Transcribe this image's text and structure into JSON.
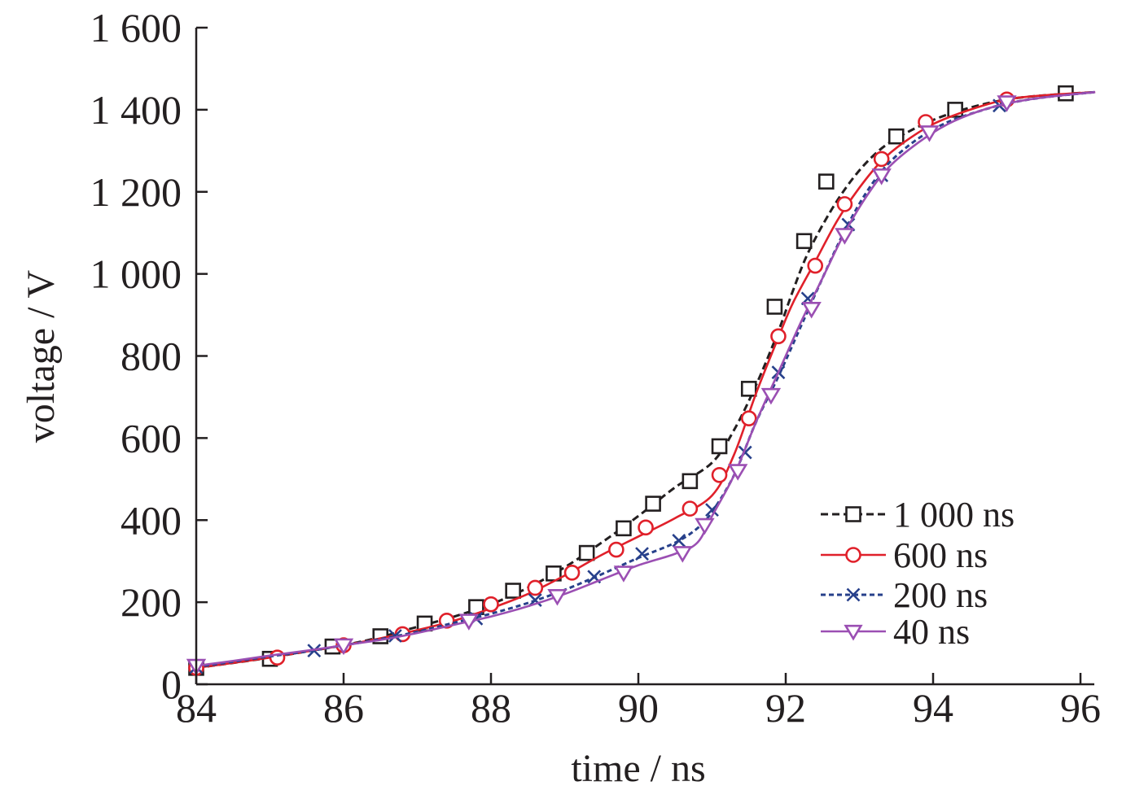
{
  "chart_data": {
    "type": "line",
    "title": "",
    "xlabel": "time / ns",
    "ylabel": "voltage / V",
    "xlim": [
      84,
      96.2
    ],
    "ylim": [
      0,
      1600
    ],
    "xticks": [
      84,
      86,
      88,
      90,
      92,
      94,
      96
    ],
    "xtick_labels": [
      "84",
      "86",
      "88",
      "90",
      "92",
      "94",
      "96"
    ],
    "yticks": [
      0,
      200,
      400,
      600,
      800,
      1000,
      1200,
      1400,
      1600
    ],
    "ytick_labels": [
      "0",
      "200",
      "400",
      "600",
      "800",
      "1 000",
      "1 200",
      "1 400",
      "1 600"
    ],
    "grid": false,
    "legend_position": "bottom-right",
    "series": [
      {
        "name": "1 000 ns",
        "color": "#231f20",
        "line": "dashed",
        "marker": "square",
        "x": [
          84.0,
          84.5,
          85.0,
          85.5,
          86.0,
          86.5,
          87.0,
          87.5,
          88.0,
          88.5,
          89.0,
          89.5,
          90.0,
          90.5,
          91.0,
          91.3,
          91.6,
          91.9,
          92.1,
          92.3,
          92.6,
          92.9,
          93.2,
          93.5,
          94.0,
          94.5,
          95.0,
          95.5,
          96.2
        ],
        "y": [
          40,
          52,
          65,
          80,
          95,
          115,
          140,
          165,
          195,
          235,
          285,
          345,
          410,
          480,
          540,
          620,
          730,
          860,
          960,
          1050,
          1150,
          1230,
          1290,
          1330,
          1375,
          1405,
          1425,
          1435,
          1443
        ],
        "marker_x": [
          84.0,
          85.0,
          85.85,
          86.5,
          87.1,
          87.8,
          88.3,
          88.85,
          89.3,
          89.8,
          90.2,
          90.7,
          91.1,
          91.5,
          91.85,
          92.25,
          92.55,
          93.5,
          94.3,
          95.8
        ],
        "marker_y": [
          40,
          62,
          92,
          117,
          148,
          188,
          228,
          270,
          320,
          380,
          440,
          495,
          580,
          720,
          920,
          1080,
          1225,
          1335,
          1400,
          1440
        ]
      },
      {
        "name": "600 ns",
        "color": "#e0202a",
        "line": "solid",
        "marker": "circle",
        "x": [
          84.0,
          84.5,
          85.0,
          85.5,
          86.0,
          86.5,
          87.0,
          87.5,
          88.0,
          88.5,
          89.0,
          89.5,
          90.0,
          90.5,
          91.0,
          91.3,
          91.6,
          91.9,
          92.1,
          92.4,
          92.7,
          93.0,
          93.3,
          93.6,
          94.0,
          94.5,
          95.0,
          95.5,
          96.2
        ],
        "y": [
          40,
          52,
          65,
          80,
          95,
          112,
          132,
          155,
          185,
          220,
          265,
          315,
          360,
          405,
          460,
          560,
          710,
          845,
          930,
          1030,
          1130,
          1210,
          1275,
          1320,
          1365,
          1400,
          1425,
          1435,
          1443
        ],
        "marker_x": [
          84.0,
          85.1,
          86.0,
          86.8,
          87.4,
          88.0,
          88.6,
          89.1,
          89.7,
          90.1,
          90.7,
          91.1,
          91.5,
          91.9,
          92.4,
          92.8,
          93.3,
          93.9,
          95.0
        ],
        "marker_y": [
          40,
          65,
          95,
          122,
          155,
          195,
          235,
          272,
          328,
          382,
          428,
          510,
          648,
          848,
          1020,
          1170,
          1280,
          1370,
          1425
        ]
      },
      {
        "name": "200 ns",
        "color": "#27408b",
        "line": "dashed",
        "marker": "cross",
        "x": [
          84.0,
          84.5,
          85.0,
          85.5,
          86.0,
          86.5,
          87.0,
          87.5,
          88.0,
          88.5,
          89.0,
          89.5,
          90.0,
          90.5,
          90.8,
          91.0,
          91.3,
          91.6,
          91.9,
          92.2,
          92.5,
          92.8,
          93.1,
          93.4,
          93.8,
          94.2,
          94.6,
          95.0,
          95.5,
          96.2
        ],
        "y": [
          42,
          55,
          68,
          80,
          95,
          110,
          128,
          150,
          172,
          198,
          230,
          268,
          308,
          345,
          380,
          420,
          510,
          640,
          750,
          870,
          990,
          1105,
          1200,
          1270,
          1330,
          1370,
          1395,
          1415,
          1430,
          1443
        ],
        "marker_x": [
          84.0,
          85.6,
          86.7,
          87.8,
          88.6,
          89.4,
          90.05,
          90.55,
          91.0,
          91.45,
          91.9,
          92.3,
          92.85,
          93.3,
          94.9
        ],
        "marker_y": [
          42,
          82,
          118,
          160,
          205,
          262,
          318,
          350,
          425,
          565,
          760,
          940,
          1120,
          1240,
          1410
        ]
      },
      {
        "name": "40 ns",
        "color": "#9b4fb3",
        "line": "solid",
        "marker": "triangle-down",
        "x": [
          84.0,
          84.5,
          85.0,
          85.5,
          86.0,
          86.5,
          87.0,
          87.5,
          88.0,
          88.5,
          89.0,
          89.5,
          90.0,
          90.5,
          90.8,
          91.0,
          91.3,
          91.6,
          91.9,
          92.2,
          92.5,
          92.8,
          93.1,
          93.4,
          93.8,
          94.2,
          94.6,
          95.0,
          95.5,
          96.2
        ],
        "y": [
          45,
          57,
          70,
          82,
          95,
          108,
          125,
          145,
          165,
          190,
          220,
          255,
          290,
          318,
          345,
          410,
          510,
          640,
          760,
          880,
          990,
          1100,
          1190,
          1260,
          1320,
          1365,
          1395,
          1415,
          1430,
          1443
        ],
        "marker_x": [
          84.0,
          86.0,
          87.7,
          88.9,
          89.8,
          90.6,
          90.9,
          91.35,
          91.8,
          92.35,
          92.8,
          93.3,
          93.95,
          95.0
        ],
        "marker_y": [
          45,
          95,
          155,
          215,
          272,
          320,
          388,
          520,
          705,
          915,
          1095,
          1240,
          1345,
          1418
        ]
      }
    ]
  }
}
